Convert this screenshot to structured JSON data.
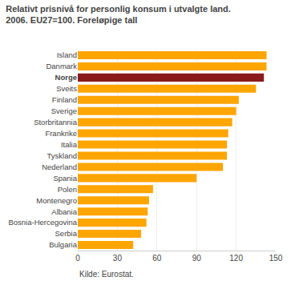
{
  "chart_data": {
    "type": "bar",
    "orientation": "horizontal",
    "title": "Relativt prisnivå for personlig konsum i utvalgte land.",
    "subtitle": "2006. EU27=100. Foreløpige tall",
    "annotations": [
      "Kilde: Eurostat."
    ],
    "categories": [
      "Bulgaria",
      "Serbia",
      "Bosnia-Hercegovina",
      "Albania",
      "Montenegro",
      "Polen",
      "Spania",
      "Nederland",
      "Tyskland",
      "Italia",
      "Frankrike",
      "Storbritannia",
      "Sverige",
      "Finland",
      "Sveits",
      "Norge",
      "Danmark",
      "Island"
    ],
    "values": [
      42,
      48,
      52,
      53,
      54,
      57,
      90,
      110,
      113,
      113,
      114,
      117,
      120,
      122,
      135,
      141,
      143,
      143
    ],
    "colors": [
      "#FFA500",
      "#FFA500",
      "#FFA500",
      "#FFA500",
      "#FFA500",
      "#FFA500",
      "#FFA500",
      "#FFA500",
      "#FFA500",
      "#FFA500",
      "#FFA500",
      "#FFA500",
      "#FFA500",
      "#FFA500",
      "#FFA500",
      "#8B1A1A",
      "#FFA500",
      "#FFA500"
    ],
    "xlim": [
      0,
      150
    ],
    "xticks": [
      0,
      30,
      60,
      90,
      120,
      150
    ],
    "grid": true
  }
}
